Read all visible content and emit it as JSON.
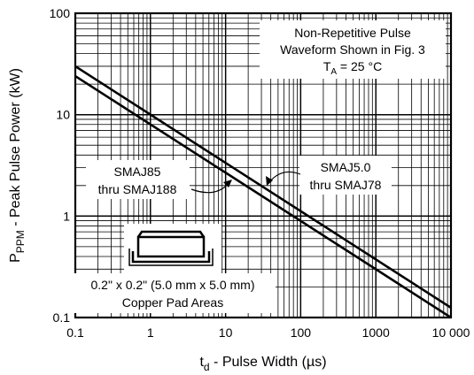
{
  "chart_data": {
    "type": "line",
    "x_scale": "log",
    "y_scale": "log",
    "xlim": [
      0.1,
      10000
    ],
    "ylim": [
      0.1,
      100
    ],
    "xlabel": {
      "main": "t",
      "sub": "d",
      "rest": " - Pulse Width (µs)"
    },
    "ylabel": {
      "main": "P",
      "sub": "PPM",
      "rest": " - Peak Pulse Power (kW)"
    },
    "x_ticks": [
      "0.1",
      "1",
      "10",
      "100",
      "1000",
      "10 000"
    ],
    "y_ticks": [
      "0.1",
      "1",
      "10",
      "100"
    ],
    "grid": true,
    "series": [
      {
        "name": "SMAJ5.0 thru SMAJ78",
        "x": [
          0.1,
          10000
        ],
        "y": [
          30,
          0.125
        ]
      },
      {
        "name": "SMAJ85 thru SMAJ188",
        "x": [
          0.1,
          10000
        ],
        "y": [
          24,
          0.1
        ]
      }
    ],
    "annotations": {
      "condition_line1": "Non-Repetitive Pulse",
      "condition_line2": "Waveform Shown in Fig. 3",
      "temp_main": "T",
      "temp_sub": "A",
      "temp_rest": " = 25 °C",
      "smaj85_line1": "SMAJ85",
      "smaj85_line2": "thru SMAJ188",
      "smaj5_line1": "SMAJ5.0",
      "smaj5_line2": "thru SMAJ78",
      "pad_line1": "0.2\" x 0.2\" (5.0 mm x 5.0 mm)",
      "pad_line2": "Copper Pad Areas"
    }
  }
}
